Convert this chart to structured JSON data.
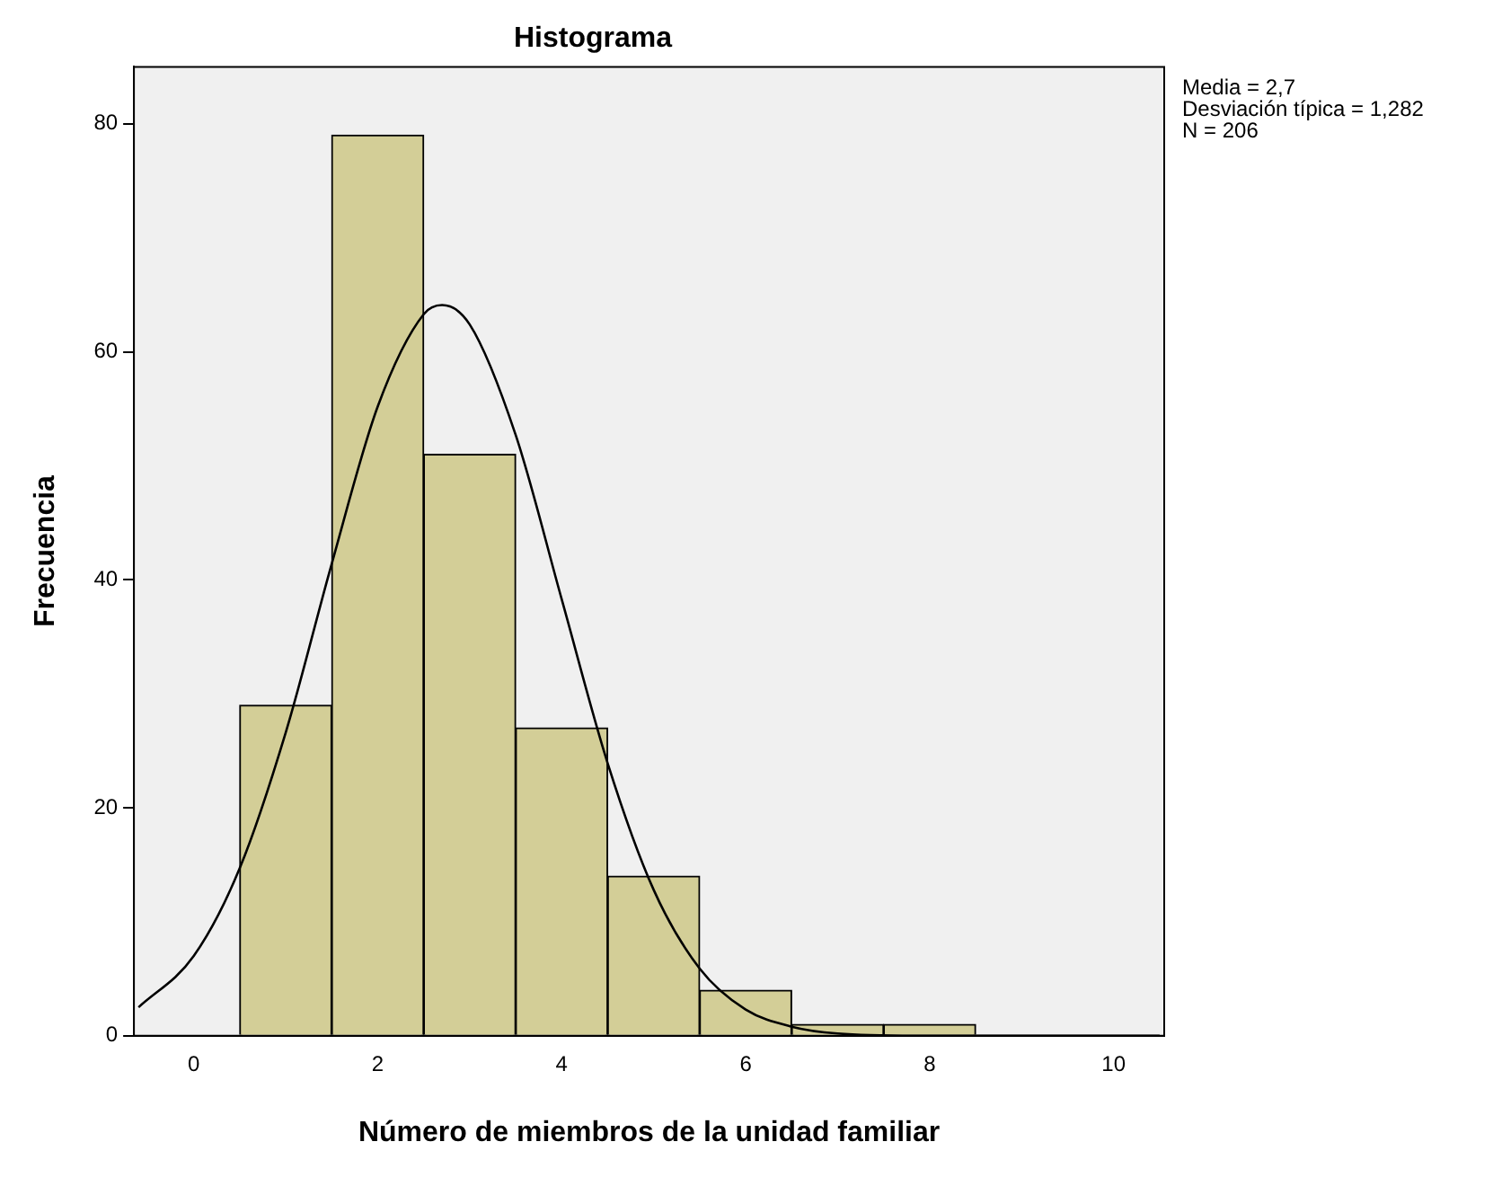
{
  "chart_data": {
    "type": "histogram",
    "title": "Histograma",
    "xlabel": "Número de miembros de la unidad familiar",
    "ylabel": "Frecuencia",
    "bins": [
      0.5,
      1.5,
      2.5,
      3.5,
      4.5,
      5.5,
      6.5,
      7.5,
      8.5,
      9.5,
      10.5
    ],
    "values": [
      29,
      79,
      51,
      27,
      14,
      4,
      1,
      1,
      0,
      0
    ],
    "color": "#d3ce97",
    "series": [
      {
        "type": "line",
        "color": "#000000",
        "x": [
          -0.6,
          0,
          0.5,
          1,
          1.5,
          2,
          2.5,
          2.7,
          3,
          3.5,
          4,
          4.5,
          5,
          5.5,
          6,
          6.5,
          7,
          8,
          9,
          10.5
        ],
        "values": [
          2.5,
          7,
          14.7,
          26.6,
          41.4,
          55.2,
          63.3,
          64.1,
          62.4,
          52.7,
          38.3,
          23.9,
          12.8,
          5.9,
          2.3,
          0.8,
          0.2,
          0,
          0,
          0
        ]
      }
    ],
    "xlim": [
      -0.65,
      10.55
    ],
    "xticks": [
      0,
      2,
      4,
      6,
      8,
      10
    ],
    "ylim": [
      0,
      85
    ],
    "yticks": [
      0,
      20,
      40,
      60,
      80
    ],
    "grid": false,
    "legend": false,
    "annotations": [
      "Media = 2,7",
      "Desviación típica = 1,282",
      "N = 206"
    ]
  }
}
